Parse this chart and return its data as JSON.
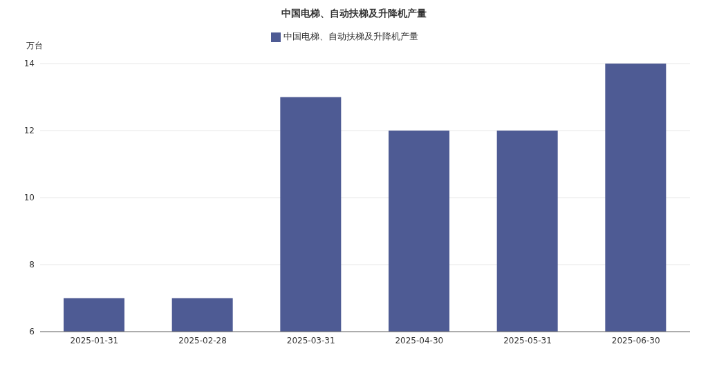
{
  "chart_data": {
    "type": "bar",
    "title": "中国电梯、自动扶梯及升降机产量",
    "ylabel": "万台",
    "categories": [
      "2025-01-31",
      "2025-02-28",
      "2025-03-31",
      "2025-04-30",
      "2025-05-31",
      "2025-06-30"
    ],
    "series": [
      {
        "name": "中国电梯、自动扶梯及升降机产量",
        "color": "#4e5b94",
        "values": [
          7,
          7,
          13,
          12,
          12,
          14
        ]
      }
    ],
    "ylim": [
      6,
      14
    ],
    "yticks": [
      6,
      8,
      10,
      12,
      14
    ],
    "grid": "y",
    "legend": "top"
  }
}
